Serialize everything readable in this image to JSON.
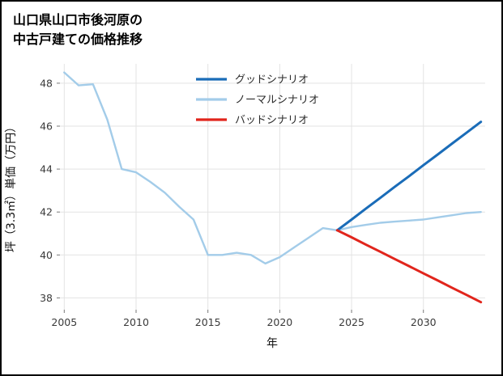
{
  "title": {
    "line1": "山口県山口市後河原の",
    "line2": "中古戸建ての価格推移"
  },
  "chart_data": {
    "type": "line",
    "title": "山口県山口市後河原の中古戸建ての価格推移",
    "xlabel": "年",
    "ylabel": "坪（3.3㎡）単価（万円）",
    "xlim": [
      2004.7,
      2034.3
    ],
    "ylim": [
      37.45,
      48.9
    ],
    "xticks": [
      2005,
      2010,
      2015,
      2020,
      2025,
      2030
    ],
    "yticks": [
      38,
      40,
      42,
      44,
      46,
      48
    ],
    "grid": true,
    "grid_color": "#e3e3e3",
    "legend_position": "upper center inside plot",
    "legend": [
      {
        "label": "グッドシナリオ",
        "color": "#1a6cb8"
      },
      {
        "label": "ノーマルシナリオ",
        "color": "#a3cce9"
      },
      {
        "label": "バッドシナリオ",
        "color": "#e1251c"
      }
    ],
    "series": [
      {
        "name": "ノーマルシナリオ",
        "color": "#a3cce9",
        "x": [
          2005,
          2006,
          2007,
          2008,
          2009,
          2010,
          2011,
          2012,
          2013,
          2014,
          2015,
          2016,
          2017,
          2018,
          2019,
          2020,
          2021,
          2022,
          2023,
          2024,
          2025,
          2026,
          2027,
          2028,
          2029,
          2030,
          2031,
          2032,
          2033,
          2034
        ],
        "y": [
          48.5,
          47.9,
          47.95,
          46.3,
          44.0,
          43.85,
          43.4,
          42.9,
          42.25,
          41.65,
          40.0,
          40.0,
          40.1,
          40.0,
          39.6,
          39.9,
          40.35,
          40.8,
          41.25,
          41.15,
          41.3,
          41.4,
          41.5,
          41.55,
          41.6,
          41.65,
          41.75,
          41.85,
          41.95,
          42.0
        ]
      },
      {
        "name": "グッドシナリオ",
        "color": "#1a6cb8",
        "x": [
          2024,
          2025,
          2026,
          2027,
          2028,
          2029,
          2030,
          2031,
          2032,
          2033,
          2034
        ],
        "y": [
          41.15,
          41.65,
          42.16,
          42.66,
          43.17,
          43.67,
          44.18,
          44.68,
          45.19,
          45.69,
          46.2
        ]
      },
      {
        "name": "バッドシナリオ",
        "color": "#e1251c",
        "x": [
          2024,
          2025,
          2026,
          2027,
          2028,
          2029,
          2030,
          2031,
          2032,
          2033,
          2034
        ],
        "y": [
          41.15,
          40.82,
          40.48,
          40.15,
          39.81,
          39.48,
          39.14,
          38.81,
          38.47,
          38.14,
          37.8
        ]
      }
    ]
  }
}
